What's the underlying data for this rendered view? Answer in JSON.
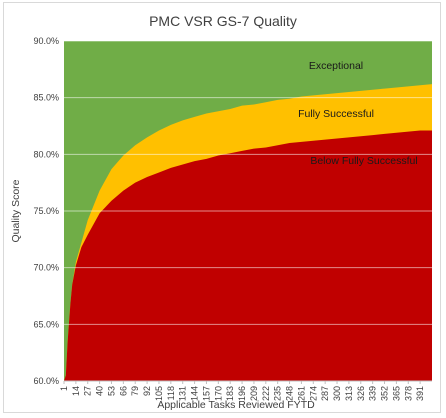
{
  "chart_data": {
    "type": "area",
    "title": "PMC VSR GS-7 Quality",
    "xlabel": "Applicable Tasks Reviewed FYTD",
    "ylabel": "Quality Score",
    "x_range": [
      1,
      404
    ],
    "ylim": [
      0.6,
      0.9
    ],
    "y_ticks": [
      "60.0%",
      "65.0%",
      "70.0%",
      "75.0%",
      "80.0%",
      "85.0%",
      "90.0%"
    ],
    "x_ticks": [
      1,
      14,
      27,
      40,
      53,
      66,
      79,
      92,
      105,
      118,
      131,
      144,
      157,
      170,
      183,
      196,
      209,
      222,
      235,
      248,
      261,
      274,
      287,
      300,
      313,
      326,
      339,
      352,
      365,
      378,
      391
    ],
    "grid": true,
    "series": [
      {
        "name": "Below Fully Successful",
        "color": "#c00000",
        "x": [
          1,
          3,
          5,
          8,
          10,
          14,
          20,
          27,
          40,
          53,
          66,
          79,
          92,
          105,
          118,
          131,
          144,
          157,
          170,
          183,
          196,
          209,
          222,
          235,
          248,
          261,
          274,
          287,
          300,
          313,
          326,
          339,
          352,
          365,
          378,
          391,
          404
        ],
        "values": [
          0.6,
          0.605,
          0.635,
          0.668,
          0.685,
          0.702,
          0.718,
          0.729,
          0.748,
          0.759,
          0.768,
          0.775,
          0.78,
          0.784,
          0.788,
          0.791,
          0.794,
          0.796,
          0.799,
          0.801,
          0.803,
          0.805,
          0.806,
          0.808,
          0.81,
          0.811,
          0.812,
          0.813,
          0.814,
          0.815,
          0.816,
          0.817,
          0.818,
          0.819,
          0.82,
          0.821,
          0.821
        ]
      },
      {
        "name": "Fully Successful",
        "color": "#ffc000",
        "x": [
          1,
          3,
          5,
          8,
          10,
          14,
          20,
          27,
          40,
          53,
          66,
          79,
          92,
          105,
          118,
          131,
          144,
          157,
          170,
          183,
          196,
          209,
          222,
          235,
          248,
          261,
          274,
          287,
          300,
          313,
          326,
          339,
          352,
          365,
          378,
          391,
          404
        ],
        "values": [
          0.6,
          0.605,
          0.635,
          0.668,
          0.685,
          0.705,
          0.722,
          0.742,
          0.768,
          0.787,
          0.799,
          0.808,
          0.815,
          0.821,
          0.826,
          0.83,
          0.833,
          0.836,
          0.838,
          0.84,
          0.843,
          0.844,
          0.846,
          0.848,
          0.849,
          0.851,
          0.852,
          0.853,
          0.854,
          0.855,
          0.856,
          0.857,
          0.858,
          0.859,
          0.86,
          0.861,
          0.862
        ]
      },
      {
        "name": "Exceptional",
        "color": "#70ad47",
        "upper": 0.9
      }
    ],
    "annotations": [
      "Exceptional",
      "Fully Successful",
      "Below Fully Successful"
    ]
  }
}
